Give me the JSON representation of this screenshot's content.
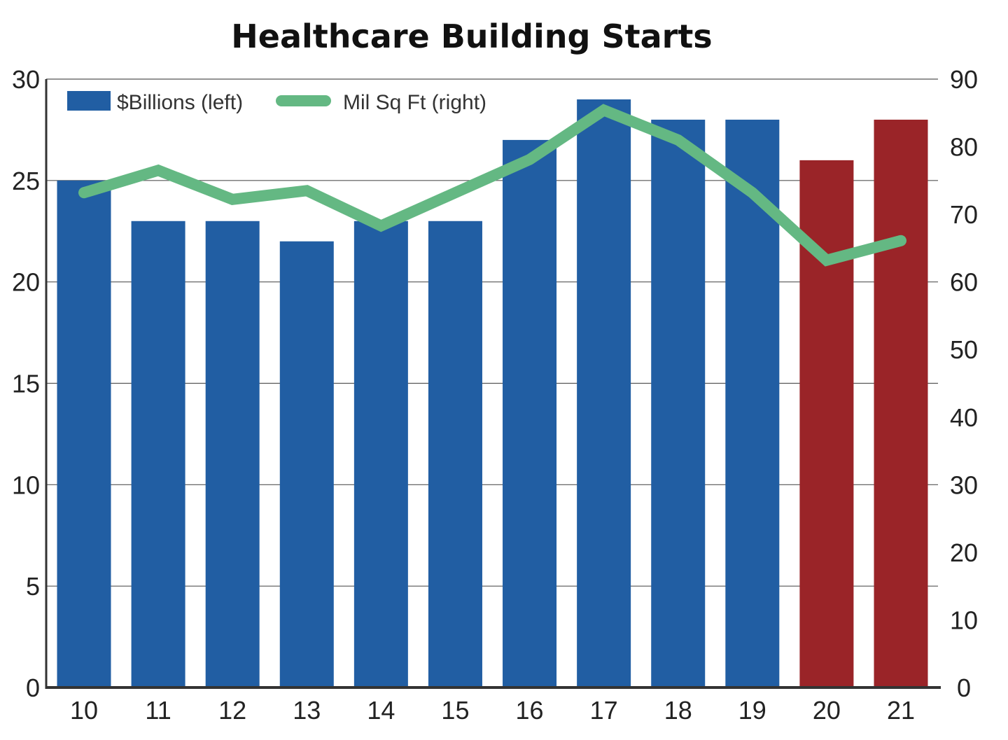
{
  "chart_data": {
    "type": "bar+line",
    "title": "Healthcare Building Starts",
    "categories": [
      "10",
      "11",
      "12",
      "13",
      "14",
      "15",
      "16",
      "17",
      "18",
      "19",
      "20",
      "21"
    ],
    "series": [
      {
        "name": "$Billions (left)",
        "type": "bar",
        "axis": "left",
        "values": [
          25,
          23,
          23,
          22,
          23,
          23,
          27,
          29,
          28,
          28,
          26,
          28
        ],
        "color": "#215ea3",
        "highlight_color": "#9a2428",
        "highlight_categories": [
          "20",
          "21"
        ]
      },
      {
        "name": "Mil Sq Ft (right)",
        "type": "line",
        "axis": "right",
        "values": [
          73.2,
          76.5,
          72.2,
          73.5,
          68.3,
          73.2,
          78.1,
          85.4,
          81,
          73.2,
          63.2,
          66.1
        ],
        "color": "#64b883"
      }
    ],
    "y_left": {
      "range": [
        0,
        30
      ],
      "ticks": [
        "0",
        "5",
        "10",
        "15",
        "20",
        "25",
        "30"
      ]
    },
    "y_right": {
      "range": [
        0,
        90
      ],
      "ticks": [
        "0",
        "10",
        "20",
        "30",
        "40",
        "50",
        "60",
        "70",
        "80",
        "90"
      ]
    },
    "grid": true,
    "legend_placement": "top-left"
  }
}
